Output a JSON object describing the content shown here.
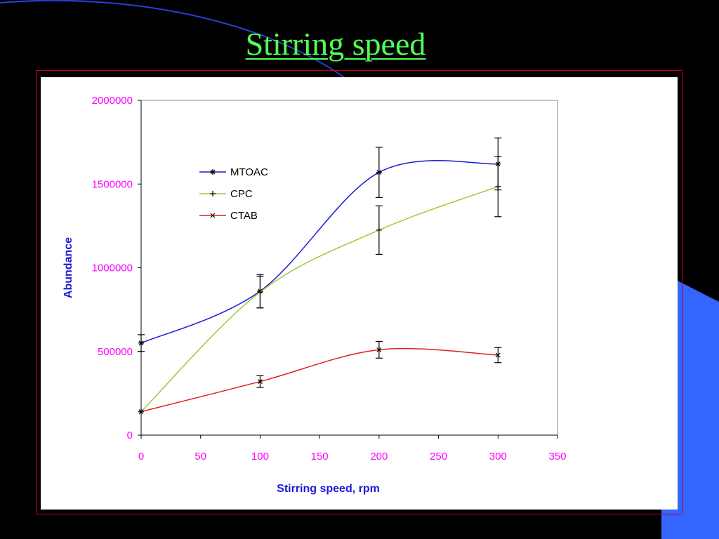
{
  "slide": {
    "title": "Stirring speed"
  },
  "colors": {
    "background": "#000000",
    "title": "#55ff55",
    "frame_border": "#c00024",
    "panel": "#ffffff",
    "tick_labels": "#ff00ff",
    "axis_titles": "#1a1ad6",
    "accent_shape": "#3366ff",
    "deco_curve": "#2a3fd6",
    "error_bars": "#000000"
  },
  "chart_data": {
    "type": "line",
    "title": "",
    "xlabel": "Stirring speed, rpm",
    "ylabel": "Abundance",
    "xlim": [
      0,
      350
    ],
    "ylim": [
      0,
      2000000
    ],
    "x_ticks": [
      0,
      50,
      100,
      150,
      200,
      250,
      300,
      350
    ],
    "y_ticks": [
      0,
      500000,
      1000000,
      1500000,
      2000000
    ],
    "x": [
      0,
      100,
      200,
      300
    ],
    "grid": false,
    "legend_position": "top-left",
    "smoothed": true,
    "series": [
      {
        "name": "MTOAC",
        "marker": "asterisk",
        "color": "#1a1ad6",
        "values": [
          550000,
          860000,
          1570000,
          1620000
        ],
        "error": [
          50000,
          100000,
          150000,
          155000
        ]
      },
      {
        "name": "CPC",
        "marker": "plus",
        "color": "#99cc33",
        "values": [
          140000,
          855000,
          1225000,
          1485000
        ],
        "error": [
          0,
          95000,
          145000,
          180000
        ]
      },
      {
        "name": "CTAB",
        "marker": "x",
        "color": "#e02020",
        "values": [
          140000,
          320000,
          510000,
          478000
        ],
        "error": [
          0,
          35000,
          50000,
          45000
        ]
      }
    ]
  }
}
